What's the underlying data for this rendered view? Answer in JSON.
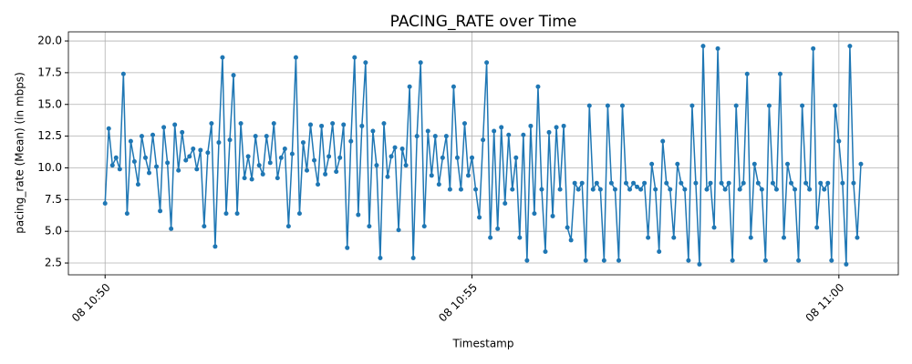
{
  "chart_data": {
    "type": "line",
    "title": "PACING_RATE over Time",
    "x_label": "Timestamp",
    "y_label": "pacing_rate (Mean) (in mbps)",
    "color": "#1f77b4",
    "grid": true,
    "xlim": [
      649.5,
      660.81
    ],
    "xticks": [
      {
        "value": 650,
        "label": "08 10:50"
      },
      {
        "value": 655,
        "label": "08 10:55"
      },
      {
        "value": 660,
        "label": "08 11:00"
      }
    ],
    "ylim": [
      1.57,
      20.72
    ],
    "yticks": [
      2.5,
      {
        "value": 5,
        "label": "5.0"
      },
      7.5,
      {
        "value": 10,
        "label": "10.0"
      },
      12.5,
      {
        "value": 15,
        "label": "15.0"
      },
      17.5,
      {
        "value": 20,
        "label": "20.0"
      }
    ],
    "x": [
      650,
      650.05,
      650.1,
      650.15,
      650.2,
      650.25,
      650.3,
      650.35,
      650.4,
      650.45,
      650.5,
      650.55,
      650.6,
      650.65,
      650.7,
      650.75,
      650.8,
      650.85,
      650.9,
      650.95,
      651,
      651.05,
      651.1,
      651.15,
      651.2,
      651.25,
      651.3,
      651.35,
      651.4,
      651.45,
      651.5,
      651.55,
      651.6,
      651.65,
      651.7,
      651.75,
      651.8,
      651.85,
      651.9,
      651.95,
      652,
      652.05,
      652.1,
      652.15,
      652.2,
      652.25,
      652.3,
      652.35,
      652.4,
      652.45,
      652.5,
      652.55,
      652.6,
      652.65,
      652.7,
      652.75,
      652.8,
      652.85,
      652.9,
      652.95,
      653,
      653.05,
      653.1,
      653.15,
      653.2,
      653.25,
      653.3,
      653.35,
      653.4,
      653.45,
      653.5,
      653.55,
      653.6,
      653.65,
      653.7,
      653.75,
      653.8,
      653.85,
      653.9,
      653.95,
      654,
      654.05,
      654.1,
      654.15,
      654.2,
      654.25,
      654.3,
      654.35,
      654.4,
      654.45,
      654.5,
      654.55,
      654.6,
      654.65,
      654.7,
      654.75,
      654.8,
      654.85,
      654.9,
      654.95,
      655,
      655.05,
      655.1,
      655.15,
      655.2,
      655.25,
      655.3,
      655.35,
      655.4,
      655.45,
      655.5,
      655.55,
      655.6,
      655.65,
      655.7,
      655.75,
      655.8,
      655.85,
      655.9,
      655.95,
      656,
      656.05,
      656.1,
      656.15,
      656.2,
      656.25,
      656.3,
      656.35,
      656.4,
      656.45,
      656.5,
      656.55,
      656.6,
      656.65,
      656.7,
      656.75,
      656.8,
      656.85,
      656.9,
      656.95,
      657,
      657.05,
      657.1,
      657.15,
      657.2,
      657.25,
      657.3,
      657.35,
      657.4,
      657.45,
      657.5,
      657.55,
      657.6,
      657.65,
      657.7,
      657.75,
      657.8,
      657.85,
      657.9,
      657.95,
      658,
      658.05,
      658.1,
      658.15,
      658.2,
      658.25,
      658.3,
      658.35,
      658.4,
      658.45,
      658.5,
      658.55,
      658.6,
      658.65,
      658.7,
      658.75,
      658.8,
      658.85,
      658.9,
      658.95,
      659,
      659.05,
      659.1,
      659.15,
      659.2,
      659.25,
      659.3,
      659.35,
      659.4,
      659.45,
      659.5,
      659.55,
      659.6,
      659.65,
      659.7,
      659.75,
      659.8,
      659.85,
      659.9,
      659.95,
      660,
      660.05,
      660.1,
      660.15,
      660.2,
      660.25,
      660.3
    ],
    "values": [
      7.2,
      13.1,
      10.2,
      10.8,
      9.9,
      17.4,
      6.4,
      12.1,
      10.5,
      8.7,
      12.5,
      10.8,
      9.6,
      12.6,
      10.1,
      6.6,
      13.2,
      10.4,
      5.2,
      13.4,
      9.8,
      12.8,
      10.6,
      10.9,
      11.5,
      9.9,
      11.4,
      5.4,
      11.2,
      13.5,
      3.8,
      12.0,
      18.7,
      6.4,
      12.2,
      17.3,
      6.4,
      13.5,
      9.2,
      10.9,
      9.1,
      12.5,
      10.2,
      9.5,
      12.5,
      10.4,
      13.5,
      9.2,
      10.8,
      11.5,
      5.4,
      11.1,
      18.7,
      6.4,
      12.0,
      9.8,
      13.4,
      10.6,
      8.7,
      13.3,
      9.5,
      10.9,
      13.5,
      9.7,
      10.8,
      13.4,
      3.7,
      12.1,
      18.7,
      6.3,
      13.3,
      18.3,
      5.4,
      12.9,
      10.2,
      2.9,
      13.5,
      9.3,
      10.9,
      11.6,
      5.1,
      11.5,
      10.2,
      16.4,
      2.9,
      12.5,
      18.3,
      5.4,
      12.9,
      9.4,
      12.5,
      8.7,
      10.8,
      12.5,
      8.3,
      16.4,
      10.8,
      8.3,
      13.5,
      9.4,
      10.8,
      8.3,
      6.1,
      12.2,
      18.3,
      4.5,
      12.9,
      5.2,
      13.2,
      7.2,
      12.6,
      8.3,
      10.8,
      4.5,
      12.6,
      2.7,
      13.3,
      6.4,
      16.4,
      8.3,
      3.4,
      12.8,
      6.2,
      13.2,
      8.3,
      13.3,
      5.3,
      4.3,
      8.8,
      8.3,
      8.8,
      2.7,
      14.9,
      8.3,
      8.8,
      8.3,
      2.7,
      14.9,
      8.8,
      8.3,
      2.7,
      14.9,
      8.8,
      8.3,
      8.8,
      8.5,
      8.3,
      8.8,
      4.5,
      10.3,
      8.3,
      3.4,
      12.1,
      8.8,
      8.3,
      4.5,
      10.3,
      8.8,
      8.3,
      2.7,
      14.9,
      8.8,
      2.4,
      19.6,
      8.3,
      8.8,
      5.3,
      19.4,
      8.8,
      8.3,
      8.8,
      2.7,
      14.9,
      8.3,
      8.8,
      17.4,
      4.5,
      10.3,
      8.8,
      8.3,
      2.7,
      14.9,
      8.8,
      8.3,
      17.4,
      4.5,
      10.3,
      8.8,
      8.3,
      2.7,
      14.9,
      8.8,
      8.3,
      19.4,
      5.3,
      8.8,
      8.3,
      8.8,
      2.7,
      14.9,
      12.1,
      8.8,
      2.4,
      19.6,
      8.8,
      4.5,
      10.3
    ]
  }
}
